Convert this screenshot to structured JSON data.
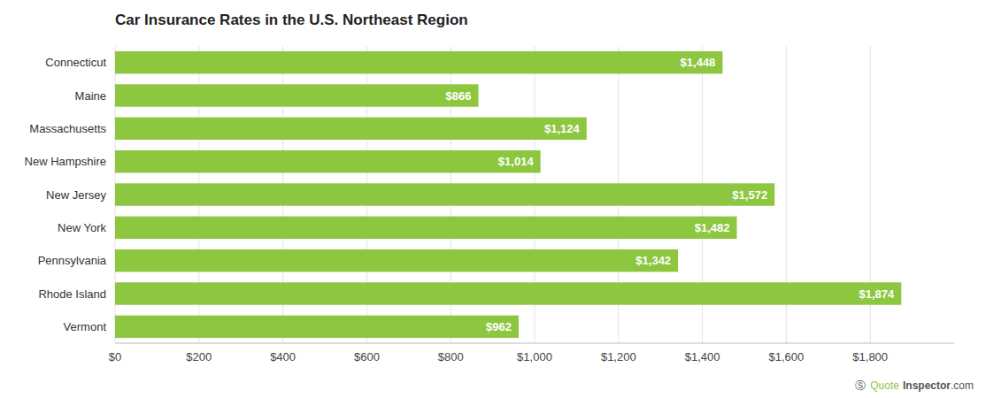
{
  "chart_data": {
    "type": "bar",
    "orientation": "horizontal",
    "title": "Car Insurance Rates in the U.S. Northeast Region",
    "categories": [
      "Connecticut",
      "Maine",
      "Massachusetts",
      "New Hampshire",
      "New Jersey",
      "New York",
      "Pennsylvania",
      "Rhode Island",
      "Vermont"
    ],
    "values": [
      1448,
      866,
      1124,
      1014,
      1572,
      1482,
      1342,
      1874,
      962
    ],
    "value_labels": [
      "$1,448",
      "$866",
      "$1,124",
      "$1,014",
      "$1,572",
      "$1,482",
      "$1,342",
      "$1,874",
      "$962"
    ],
    "data_labels": true,
    "color": "#8DC63F",
    "xlim": [
      0,
      2000
    ],
    "xticks": [
      {
        "value": 0,
        "label": "$0"
      },
      {
        "value": 200,
        "label": "$200"
      },
      {
        "value": 400,
        "label": "$400"
      },
      {
        "value": 600,
        "label": "$600"
      },
      {
        "value": 800,
        "label": "$800"
      },
      {
        "value": 1000,
        "label": "$1,000"
      },
      {
        "value": 1200,
        "label": "$1,200"
      },
      {
        "value": 1400,
        "label": "$1,400"
      },
      {
        "value": 1600,
        "label": "$1,600"
      },
      {
        "value": 1800,
        "label": "$1,800"
      }
    ],
    "grid": true,
    "annotations": [
      {
        "text": "Ⓢ",
        "color": "#555555"
      },
      {
        "text": "Quote",
        "color": "#8DC63F"
      },
      {
        "text": "Inspector",
        "color": "#555555"
      },
      {
        "text": ".com",
        "color": "#555555"
      }
    ]
  }
}
